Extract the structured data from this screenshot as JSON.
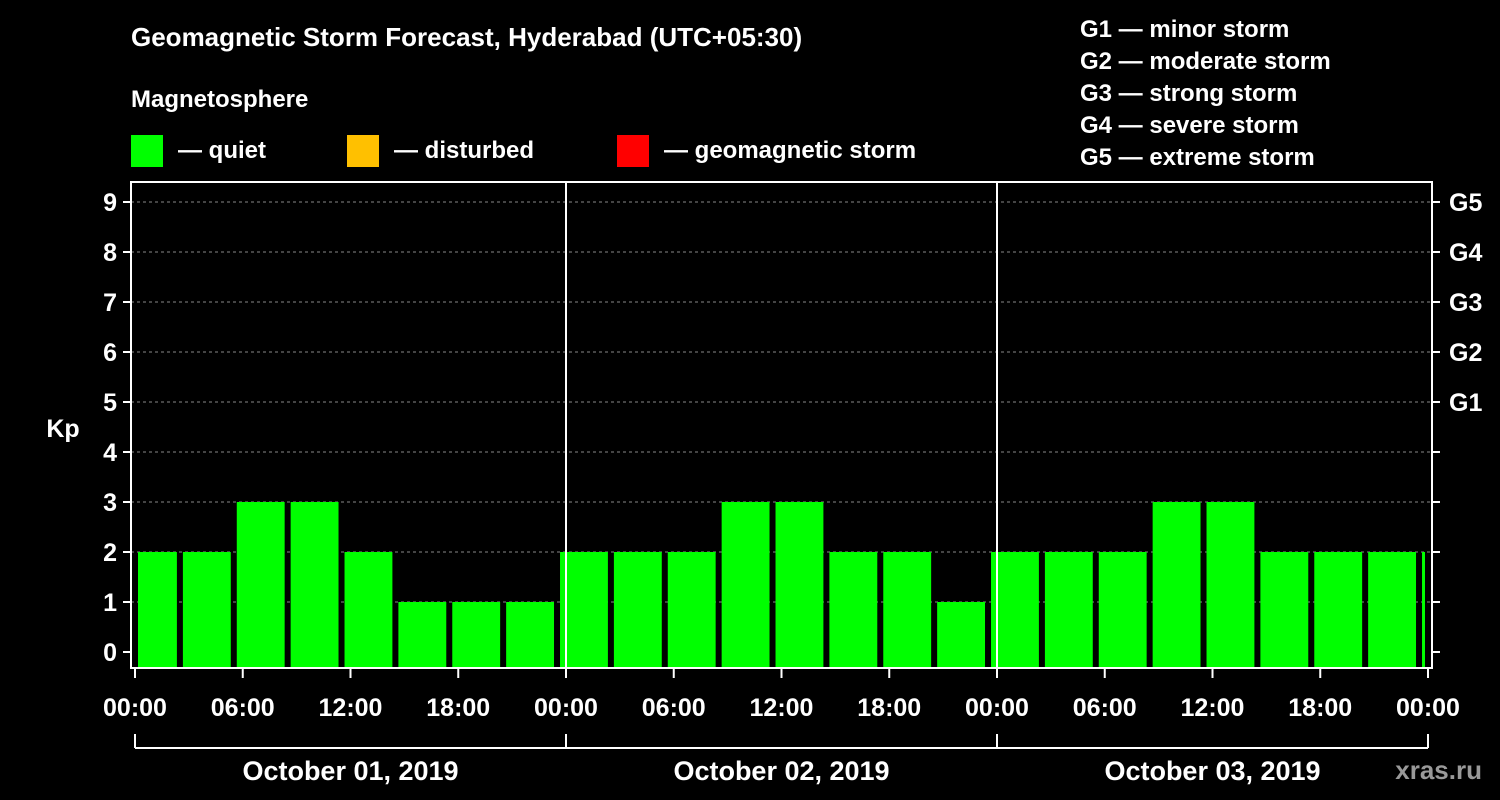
{
  "title": "Geomagnetic Storm Forecast, Hyderabad (UTC+05:30)",
  "subtitle": "Magnetosphere",
  "legend": [
    {
      "label": "— quiet",
      "color": "#00ff00"
    },
    {
      "label": "— disturbed",
      "color": "#ffc000"
    },
    {
      "label": "— geomagnetic storm",
      "color": "#ff0000"
    }
  ],
  "g_scale": [
    "G1 — minor storm",
    "G2 — moderate storm",
    "G3 — strong storm",
    "G4 — severe storm",
    "G5 — extreme storm"
  ],
  "watermark": "xras.ru",
  "chart_data": {
    "type": "bar",
    "ylabel": "Kp",
    "ylim": [
      0,
      9
    ],
    "yticks": [
      "0",
      "1",
      "2",
      "3",
      "4",
      "5",
      "6",
      "7",
      "8",
      "9"
    ],
    "right_ticks": [
      "G1",
      "G2",
      "G3",
      "G4",
      "G5"
    ],
    "right_tick_values": [
      5,
      6,
      7,
      8,
      9
    ],
    "x_tick_labels": [
      "00:00",
      "06:00",
      "12:00",
      "18:00",
      "00:00",
      "06:00",
      "12:00",
      "18:00",
      "00:00",
      "06:00",
      "12:00",
      "18:00",
      "00:00"
    ],
    "x_tick_hours": [
      0,
      6,
      12,
      18,
      24,
      30,
      36,
      42,
      48,
      54,
      60,
      66,
      72
    ],
    "days": [
      "October 01, 2019",
      "October 02, 2019",
      "October 03, 2019"
    ],
    "bars": [
      {
        "start": 0,
        "end": 2.5,
        "kp": 2
      },
      {
        "start": 2.5,
        "end": 5.5,
        "kp": 2
      },
      {
        "start": 5.5,
        "end": 8.5,
        "kp": 3
      },
      {
        "start": 8.5,
        "end": 11.5,
        "kp": 3
      },
      {
        "start": 11.5,
        "end": 14.5,
        "kp": 2
      },
      {
        "start": 14.5,
        "end": 17.5,
        "kp": 1
      },
      {
        "start": 17.5,
        "end": 20.5,
        "kp": 1
      },
      {
        "start": 20.5,
        "end": 23.5,
        "kp": 1
      },
      {
        "start": 23.5,
        "end": 26.5,
        "kp": 2
      },
      {
        "start": 26.5,
        "end": 29.5,
        "kp": 2
      },
      {
        "start": 29.5,
        "end": 32.5,
        "kp": 2
      },
      {
        "start": 32.5,
        "end": 35.5,
        "kp": 3
      },
      {
        "start": 35.5,
        "end": 38.5,
        "kp": 3
      },
      {
        "start": 38.5,
        "end": 41.5,
        "kp": 2
      },
      {
        "start": 41.5,
        "end": 44.5,
        "kp": 2
      },
      {
        "start": 44.5,
        "end": 47.5,
        "kp": 1
      },
      {
        "start": 47.5,
        "end": 50.5,
        "kp": 2
      },
      {
        "start": 50.5,
        "end": 53.5,
        "kp": 2
      },
      {
        "start": 53.5,
        "end": 56.5,
        "kp": 2
      },
      {
        "start": 56.5,
        "end": 59.5,
        "kp": 3
      },
      {
        "start": 59.5,
        "end": 62.5,
        "kp": 3
      },
      {
        "start": 62.5,
        "end": 65.5,
        "kp": 2
      },
      {
        "start": 65.5,
        "end": 68.5,
        "kp": 2
      },
      {
        "start": 68.5,
        "end": 71.5,
        "kp": 2
      },
      {
        "start": 71.5,
        "end": 72,
        "kp": 2
      }
    ]
  }
}
